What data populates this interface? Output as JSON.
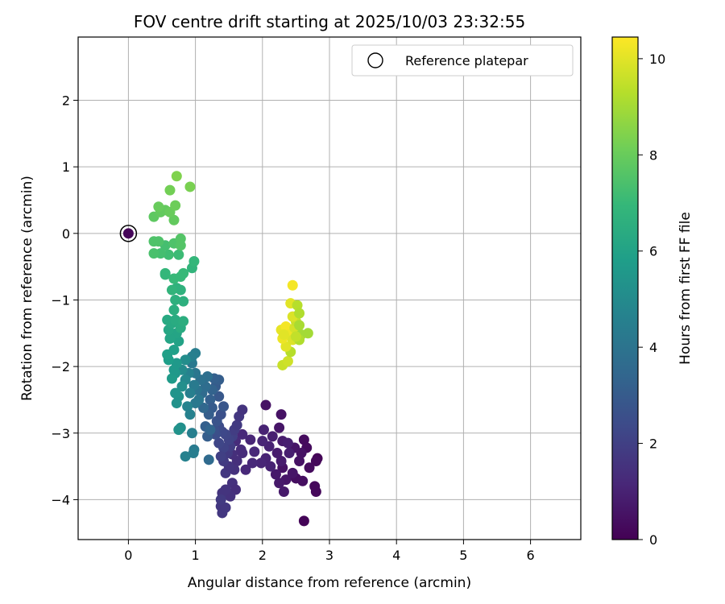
{
  "chart_data": {
    "type": "scatter",
    "title": "FOV centre drift starting at 2025/10/03 23:32:55",
    "xlabel": "Angular distance from reference (arcmin)",
    "ylabel": "Rotation from reference (arcmin)",
    "xlim": [
      -0.75,
      6.75
    ],
    "ylim": [
      -4.6,
      2.95
    ],
    "xticks": [
      0,
      1,
      2,
      3,
      4,
      5,
      6
    ],
    "yticks": [
      -4,
      -3,
      -2,
      -1,
      0,
      1,
      2
    ],
    "grid": true,
    "colormap": "viridis",
    "colorbar": {
      "label": "Hours from first FF file",
      "range": [
        0,
        10.45
      ],
      "ticks": [
        0,
        2,
        4,
        6,
        8,
        10
      ]
    },
    "legend": {
      "placement": "top-right",
      "entries": [
        {
          "label": "Reference platepar",
          "marker": "open-circle"
        }
      ]
    },
    "reference_point": {
      "x": 0,
      "y": 0,
      "t": 0.15
    },
    "points": [
      {
        "x": 2.62,
        "y": -4.32,
        "t": 0.1
      },
      {
        "x": 2.8,
        "y": -3.88,
        "t": 0.2
      },
      {
        "x": 2.78,
        "y": -3.8,
        "t": 0.2
      },
      {
        "x": 2.82,
        "y": -3.38,
        "t": 0.1
      },
      {
        "x": 2.8,
        "y": -3.42,
        "t": 0.2
      },
      {
        "x": 2.62,
        "y": -3.1,
        "t": 0.3
      },
      {
        "x": 2.66,
        "y": -3.22,
        "t": 0.3
      },
      {
        "x": 2.7,
        "y": -3.52,
        "t": 0.3
      },
      {
        "x": 2.6,
        "y": -3.72,
        "t": 0.4
      },
      {
        "x": 2.5,
        "y": -3.68,
        "t": 0.4
      },
      {
        "x": 2.58,
        "y": -3.3,
        "t": 0.5
      },
      {
        "x": 2.55,
        "y": -3.42,
        "t": 0.5
      },
      {
        "x": 2.48,
        "y": -3.22,
        "t": 0.6
      },
      {
        "x": 2.45,
        "y": -3.6,
        "t": 0.6
      },
      {
        "x": 2.3,
        "y": -3.52,
        "t": 0.5
      },
      {
        "x": 2.35,
        "y": -3.7,
        "t": 0.6
      },
      {
        "x": 2.32,
        "y": -3.88,
        "t": 0.7
      },
      {
        "x": 2.25,
        "y": -3.75,
        "t": 0.7
      },
      {
        "x": 2.2,
        "y": -3.62,
        "t": 0.7
      },
      {
        "x": 2.28,
        "y": -3.42,
        "t": 0.8
      },
      {
        "x": 2.22,
        "y": -3.3,
        "t": 0.8
      },
      {
        "x": 2.3,
        "y": -3.12,
        "t": 0.8
      },
      {
        "x": 2.38,
        "y": -3.15,
        "t": 0.9
      },
      {
        "x": 2.4,
        "y": -3.3,
        "t": 0.9
      },
      {
        "x": 2.25,
        "y": -2.92,
        "t": 0.6
      },
      {
        "x": 2.28,
        "y": -2.72,
        "t": 0.5
      },
      {
        "x": 2.05,
        "y": -2.58,
        "t": 0.5
      },
      {
        "x": 2.15,
        "y": -3.05,
        "t": 0.9
      },
      {
        "x": 2.1,
        "y": -3.2,
        "t": 1.0
      },
      {
        "x": 2.05,
        "y": -3.38,
        "t": 1.0
      },
      {
        "x": 2.12,
        "y": -3.5,
        "t": 1.0
      },
      {
        "x": 2.0,
        "y": -3.12,
        "t": 1.1
      },
      {
        "x": 1.98,
        "y": -3.45,
        "t": 1.1
      },
      {
        "x": 2.02,
        "y": -2.95,
        "t": 1.0
      },
      {
        "x": 1.88,
        "y": -3.28,
        "t": 1.2
      },
      {
        "x": 1.85,
        "y": -3.45,
        "t": 1.2
      },
      {
        "x": 1.82,
        "y": -3.1,
        "t": 1.1
      },
      {
        "x": 1.75,
        "y": -3.55,
        "t": 1.2
      },
      {
        "x": 1.7,
        "y": -3.3,
        "t": 1.3
      },
      {
        "x": 1.7,
        "y": -3.02,
        "t": 1.2
      },
      {
        "x": 1.68,
        "y": -3.25,
        "t": 1.3
      },
      {
        "x": 1.6,
        "y": -3.12,
        "t": 1.3
      },
      {
        "x": 1.62,
        "y": -3.42,
        "t": 1.4
      },
      {
        "x": 1.55,
        "y": -3.32,
        "t": 1.4
      },
      {
        "x": 1.58,
        "y": -3.55,
        "t": 1.5
      },
      {
        "x": 1.55,
        "y": -3.75,
        "t": 1.5
      },
      {
        "x": 1.6,
        "y": -3.85,
        "t": 1.4
      },
      {
        "x": 1.52,
        "y": -3.95,
        "t": 1.5
      },
      {
        "x": 1.45,
        "y": -3.85,
        "t": 1.6
      },
      {
        "x": 1.4,
        "y": -3.9,
        "t": 1.6
      },
      {
        "x": 1.38,
        "y": -4.1,
        "t": 1.7
      },
      {
        "x": 1.4,
        "y": -4.2,
        "t": 1.7
      },
      {
        "x": 1.45,
        "y": -4.12,
        "t": 1.7
      },
      {
        "x": 1.38,
        "y": -4.0,
        "t": 1.8
      },
      {
        "x": 1.45,
        "y": -3.6,
        "t": 1.7
      },
      {
        "x": 1.5,
        "y": -3.5,
        "t": 1.6
      },
      {
        "x": 1.42,
        "y": -3.42,
        "t": 1.8
      },
      {
        "x": 1.48,
        "y": -3.3,
        "t": 1.8
      },
      {
        "x": 1.52,
        "y": -3.2,
        "t": 1.9
      },
      {
        "x": 1.55,
        "y": -3.05,
        "t": 2.0
      },
      {
        "x": 1.58,
        "y": -2.95,
        "t": 1.9
      },
      {
        "x": 1.62,
        "y": -2.88,
        "t": 1.8
      },
      {
        "x": 1.65,
        "y": -2.75,
        "t": 1.7
      },
      {
        "x": 1.7,
        "y": -2.65,
        "t": 1.6
      },
      {
        "x": 1.5,
        "y": -3.1,
        "t": 2.1
      },
      {
        "x": 1.45,
        "y": -3.02,
        "t": 2.2
      },
      {
        "x": 1.42,
        "y": -3.22,
        "t": 2.1
      },
      {
        "x": 1.38,
        "y": -3.35,
        "t": 2.0
      },
      {
        "x": 1.35,
        "y": -3.15,
        "t": 2.2
      },
      {
        "x": 1.4,
        "y": -2.98,
        "t": 2.3
      },
      {
        "x": 1.35,
        "y": -2.9,
        "t": 2.4
      },
      {
        "x": 1.3,
        "y": -3.02,
        "t": 2.5
      },
      {
        "x": 1.28,
        "y": -2.95,
        "t": 2.6
      },
      {
        "x": 1.32,
        "y": -2.82,
        "t": 2.7
      },
      {
        "x": 1.38,
        "y": -2.72,
        "t": 2.6
      },
      {
        "x": 1.42,
        "y": -2.6,
        "t": 2.8
      },
      {
        "x": 1.35,
        "y": -2.45,
        "t": 2.9
      },
      {
        "x": 1.3,
        "y": -2.3,
        "t": 3.0
      },
      {
        "x": 1.35,
        "y": -2.2,
        "t": 3.1
      },
      {
        "x": 1.28,
        "y": -2.18,
        "t": 3.2
      },
      {
        "x": 1.25,
        "y": -2.35,
        "t": 3.3
      },
      {
        "x": 1.22,
        "y": -2.5,
        "t": 3.2
      },
      {
        "x": 1.25,
        "y": -2.62,
        "t": 3.0
      },
      {
        "x": 1.2,
        "y": -2.72,
        "t": 3.1
      },
      {
        "x": 1.15,
        "y": -2.9,
        "t": 3.2
      },
      {
        "x": 1.18,
        "y": -3.05,
        "t": 3.1
      },
      {
        "x": 1.22,
        "y": -2.95,
        "t": 3.4
      },
      {
        "x": 1.12,
        "y": -2.62,
        "t": 3.5
      },
      {
        "x": 1.1,
        "y": -2.4,
        "t": 3.6
      },
      {
        "x": 1.15,
        "y": -2.3,
        "t": 3.7
      },
      {
        "x": 1.18,
        "y": -2.15,
        "t": 3.8
      },
      {
        "x": 1.08,
        "y": -2.2,
        "t": 3.9
      },
      {
        "x": 1.02,
        "y": -2.35,
        "t": 4.0
      },
      {
        "x": 1.05,
        "y": -2.5,
        "t": 4.1
      },
      {
        "x": 1.0,
        "y": -2.55,
        "t": 4.2
      },
      {
        "x": 0.98,
        "y": -2.28,
        "t": 4.3
      },
      {
        "x": 1.0,
        "y": -2.1,
        "t": 4.1
      },
      {
        "x": 0.95,
        "y": -1.95,
        "t": 4.2
      },
      {
        "x": 1.0,
        "y": -1.8,
        "t": 4.4
      },
      {
        "x": 0.95,
        "y": -1.85,
        "t": 4.5
      },
      {
        "x": 0.9,
        "y": -2.1,
        "t": 4.6
      },
      {
        "x": 0.92,
        "y": -2.4,
        "t": 4.5
      },
      {
        "x": 0.88,
        "y": -2.6,
        "t": 4.7
      },
      {
        "x": 0.92,
        "y": -2.72,
        "t": 4.6
      },
      {
        "x": 0.95,
        "y": -3.0,
        "t": 4.5
      },
      {
        "x": 0.98,
        "y": -3.25,
        "t": 4.3
      },
      {
        "x": 0.97,
        "y": -3.3,
        "t": 4.4
      },
      {
        "x": 0.85,
        "y": -3.35,
        "t": 4.6
      },
      {
        "x": 1.2,
        "y": -3.4,
        "t": 3.6
      },
      {
        "x": 0.85,
        "y": -2.2,
        "t": 4.9
      },
      {
        "x": 0.8,
        "y": -2.05,
        "t": 5.0
      },
      {
        "x": 0.85,
        "y": -1.9,
        "t": 5.1
      },
      {
        "x": 0.8,
        "y": -2.3,
        "t": 5.2
      },
      {
        "x": 0.75,
        "y": -2.45,
        "t": 5.3
      },
      {
        "x": 0.7,
        "y": -2.4,
        "t": 5.4
      },
      {
        "x": 0.72,
        "y": -2.55,
        "t": 5.3
      },
      {
        "x": 0.78,
        "y": -2.92,
        "t": 5.2
      },
      {
        "x": 0.75,
        "y": -2.95,
        "t": 5.3
      },
      {
        "x": 0.7,
        "y": -2.1,
        "t": 5.5
      },
      {
        "x": 0.72,
        "y": -1.95,
        "t": 5.6
      },
      {
        "x": 0.65,
        "y": -2.18,
        "t": 5.7
      },
      {
        "x": 0.68,
        "y": -2.05,
        "t": 5.6
      },
      {
        "x": 0.6,
        "y": -1.9,
        "t": 5.8
      },
      {
        "x": 0.58,
        "y": -1.82,
        "t": 5.9
      },
      {
        "x": 0.68,
        "y": -1.75,
        "t": 5.9
      },
      {
        "x": 0.75,
        "y": -1.62,
        "t": 6.0
      },
      {
        "x": 0.72,
        "y": -1.5,
        "t": 6.1
      },
      {
        "x": 0.62,
        "y": -1.58,
        "t": 6.1
      },
      {
        "x": 0.6,
        "y": -1.45,
        "t": 6.2
      },
      {
        "x": 0.58,
        "y": -1.3,
        "t": 6.3
      },
      {
        "x": 0.65,
        "y": -1.35,
        "t": 6.3
      },
      {
        "x": 0.7,
        "y": -1.3,
        "t": 6.4
      },
      {
        "x": 0.78,
        "y": -1.42,
        "t": 6.4
      },
      {
        "x": 0.82,
        "y": -1.32,
        "t": 6.5
      },
      {
        "x": 0.68,
        "y": -1.15,
        "t": 6.5
      },
      {
        "x": 0.7,
        "y": -1.0,
        "t": 6.6
      },
      {
        "x": 0.82,
        "y": -1.02,
        "t": 6.6
      },
      {
        "x": 0.78,
        "y": -0.85,
        "t": 6.7
      },
      {
        "x": 0.72,
        "y": -0.82,
        "t": 6.7
      },
      {
        "x": 0.65,
        "y": -0.85,
        "t": 6.8
      },
      {
        "x": 0.55,
        "y": -0.6,
        "t": 6.9
      },
      {
        "x": 0.55,
        "y": -0.62,
        "t": 6.9
      },
      {
        "x": 0.68,
        "y": -0.68,
        "t": 7.0
      },
      {
        "x": 0.78,
        "y": -0.65,
        "t": 7.0
      },
      {
        "x": 0.82,
        "y": -0.6,
        "t": 7.0
      },
      {
        "x": 0.95,
        "y": -0.52,
        "t": 6.8
      },
      {
        "x": 0.98,
        "y": -0.42,
        "t": 6.9
      },
      {
        "x": 0.75,
        "y": -0.32,
        "t": 7.1
      },
      {
        "x": 0.6,
        "y": -0.32,
        "t": 7.2
      },
      {
        "x": 0.55,
        "y": -0.18,
        "t": 7.3
      },
      {
        "x": 0.48,
        "y": -0.3,
        "t": 7.3
      },
      {
        "x": 0.38,
        "y": -0.3,
        "t": 7.4
      },
      {
        "x": 0.38,
        "y": -0.12,
        "t": 7.5
      },
      {
        "x": 0.45,
        "y": -0.12,
        "t": 7.5
      },
      {
        "x": 0.68,
        "y": -0.15,
        "t": 7.5
      },
      {
        "x": 0.78,
        "y": -0.08,
        "t": 7.6
      },
      {
        "x": 0.78,
        "y": -0.18,
        "t": 7.6
      },
      {
        "x": 0.38,
        "y": 0.25,
        "t": 7.8
      },
      {
        "x": 0.48,
        "y": 0.32,
        "t": 7.9
      },
      {
        "x": 0.55,
        "y": 0.35,
        "t": 7.9
      },
      {
        "x": 0.45,
        "y": 0.4,
        "t": 8.0
      },
      {
        "x": 0.68,
        "y": 0.2,
        "t": 7.9
      },
      {
        "x": 0.62,
        "y": 0.32,
        "t": 8.0
      },
      {
        "x": 0.7,
        "y": 0.42,
        "t": 8.1
      },
      {
        "x": 0.62,
        "y": 0.65,
        "t": 8.2
      },
      {
        "x": 0.72,
        "y": 0.86,
        "t": 8.4
      },
      {
        "x": 0.92,
        "y": 0.7,
        "t": 8.3
      },
      {
        "x": 2.3,
        "y": -1.98,
        "t": 9.6
      },
      {
        "x": 2.38,
        "y": -1.92,
        "t": 9.7
      },
      {
        "x": 2.42,
        "y": -1.78,
        "t": 9.3
      },
      {
        "x": 2.35,
        "y": -1.7,
        "t": 10.0
      },
      {
        "x": 2.3,
        "y": -1.58,
        "t": 10.2
      },
      {
        "x": 2.28,
        "y": -1.45,
        "t": 10.1
      },
      {
        "x": 2.35,
        "y": -1.4,
        "t": 10.3
      },
      {
        "x": 2.4,
        "y": -1.52,
        "t": 10.2
      },
      {
        "x": 2.45,
        "y": -1.6,
        "t": 9.9
      },
      {
        "x": 2.48,
        "y": -1.42,
        "t": 9.8
      },
      {
        "x": 2.5,
        "y": -1.32,
        "t": 9.6
      },
      {
        "x": 2.45,
        "y": -1.25,
        "t": 9.9
      },
      {
        "x": 2.42,
        "y": -1.05,
        "t": 10.0
      },
      {
        "x": 2.45,
        "y": -0.78,
        "t": 10.3
      },
      {
        "x": 2.52,
        "y": -1.08,
        "t": 9.3
      },
      {
        "x": 2.55,
        "y": -1.2,
        "t": 9.2
      },
      {
        "x": 2.55,
        "y": -1.38,
        "t": 9.1
      },
      {
        "x": 2.58,
        "y": -1.52,
        "t": 9.0
      },
      {
        "x": 2.55,
        "y": -1.6,
        "t": 9.2
      },
      {
        "x": 2.68,
        "y": -1.5,
        "t": 9.0
      },
      {
        "x": 2.5,
        "y": -1.55,
        "t": 9.5
      },
      {
        "x": 2.32,
        "y": -1.52,
        "t": 10.0
      }
    ]
  }
}
